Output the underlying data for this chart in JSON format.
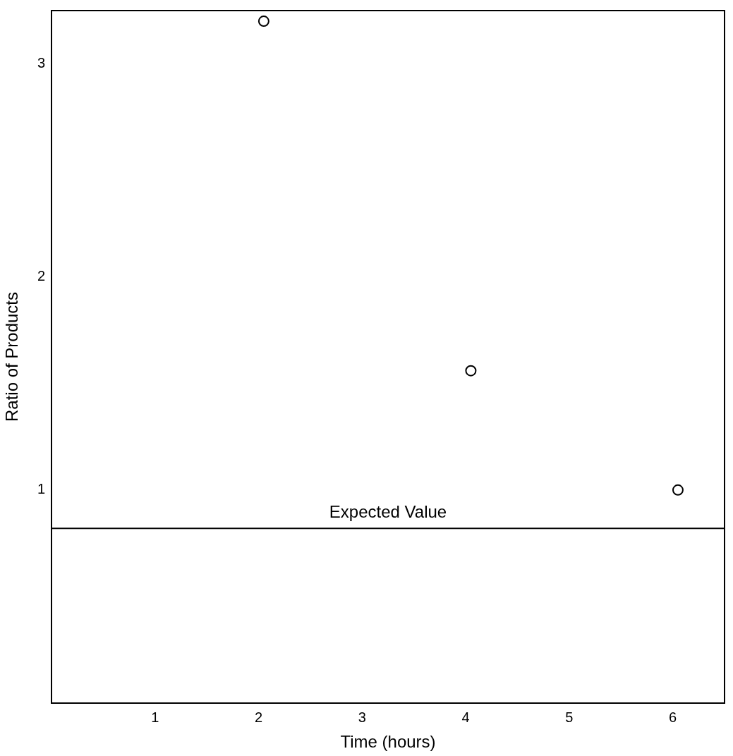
{
  "chart_data": {
    "type": "scatter",
    "xlabel": "Time (hours)",
    "ylabel": "Ratio of Products",
    "x": [
      2.05,
      4.05,
      6.05
    ],
    "values": [
      3.2,
      1.56,
      1.0
    ],
    "color": "#000000",
    "marker": "circle",
    "xlim": [
      0,
      6.5
    ],
    "xticks": [
      1,
      2,
      3,
      4,
      5,
      6
    ],
    "ylim": [
      0,
      3.25
    ],
    "yticks": [
      1,
      2,
      3
    ],
    "grid": false,
    "legend": false,
    "ref_lines": [
      {
        "axis": "y",
        "value": 0.82,
        "label": "Expected Value",
        "color": "#000000"
      }
    ]
  }
}
